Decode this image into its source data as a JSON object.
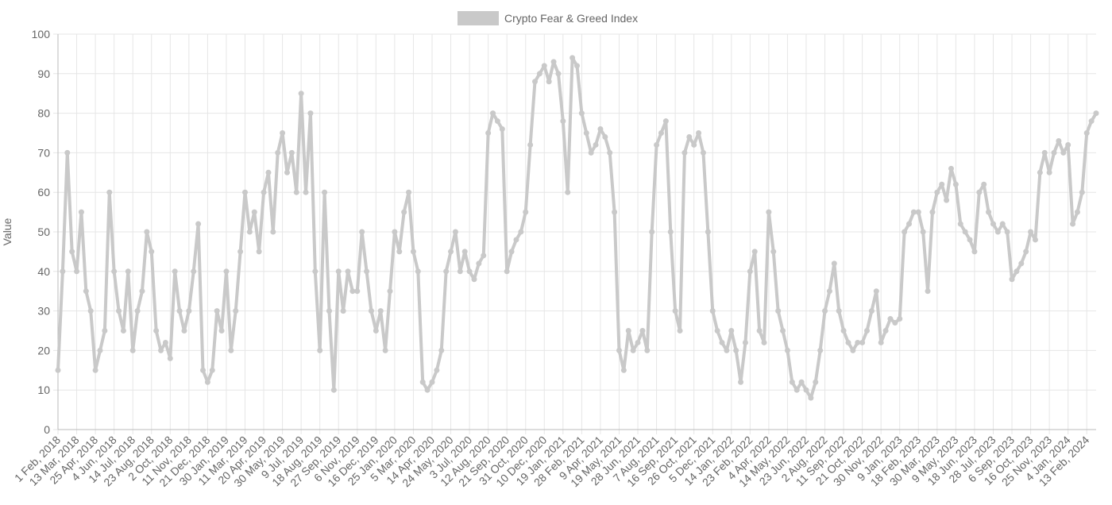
{
  "chart_data": {
    "type": "line",
    "categories": [
      "1 Feb, 2018",
      null,
      null,
      null,
      "13 Mar, 2018",
      null,
      null,
      null,
      "25 Apr, 2018",
      null,
      null,
      null,
      "4 Jun, 2018",
      null,
      null,
      null,
      "14 Jul, 2018",
      null,
      null,
      null,
      "23 Aug, 2018",
      null,
      null,
      null,
      "2 Oct, 2018",
      null,
      null,
      null,
      "11 Nov, 2018",
      null,
      null,
      null,
      "21 Dec, 2018",
      null,
      null,
      null,
      "30 Jan, 2019",
      null,
      null,
      null,
      "11 Mar, 2019",
      null,
      null,
      null,
      "20 Apr, 2019",
      null,
      null,
      null,
      "30 May, 2019",
      null,
      null,
      null,
      "9 Jul, 2019",
      null,
      null,
      null,
      "18 Aug, 2019",
      null,
      null,
      null,
      "27 Sep, 2019",
      null,
      null,
      null,
      "6 Nov, 2019",
      null,
      null,
      null,
      "16 Dec, 2019",
      null,
      null,
      null,
      "25 Jan, 2020",
      null,
      null,
      null,
      "5 Mar, 2020",
      null,
      null,
      null,
      "14 Apr, 2020",
      null,
      null,
      null,
      "24 May, 2020",
      null,
      null,
      null,
      "3 Jul, 2020",
      null,
      null,
      null,
      "12 Aug, 2020",
      null,
      null,
      null,
      "21 Sep, 2020",
      null,
      null,
      null,
      "31 Oct, 2020",
      null,
      null,
      null,
      "10 Dec, 2020",
      null,
      null,
      null,
      "19 Jan, 2021",
      null,
      null,
      null,
      "28 Feb, 2021",
      null,
      null,
      null,
      "9 Apr, 2021",
      null,
      null,
      null,
      "19 May, 2021",
      null,
      null,
      null,
      "28 Jun, 2021",
      null,
      null,
      null,
      "7 Aug, 2021",
      null,
      null,
      null,
      "16 Sep, 2021",
      null,
      null,
      null,
      "26 Oct, 2021",
      null,
      null,
      null,
      "5 Dec, 2021",
      null,
      null,
      null,
      "14 Jan, 2022",
      null,
      null,
      null,
      "23 Feb, 2022",
      null,
      null,
      null,
      "4 Apr, 2022",
      null,
      null,
      null,
      "14 May, 2022",
      null,
      null,
      null,
      "23 Jun, 2022",
      null,
      null,
      null,
      "2 Aug, 2022",
      null,
      null,
      null,
      "11 Sep, 2022",
      null,
      null,
      null,
      "21 Oct, 2022",
      null,
      null,
      null,
      "30 Nov, 2022",
      null,
      null,
      null,
      "9 Jan, 2023",
      null,
      null,
      null,
      "18 Feb, 2023",
      null,
      null,
      null,
      "30 Mar, 2023",
      null,
      null,
      null,
      "9 May, 2023",
      null,
      null,
      null,
      "18 Jun, 2023",
      null,
      null,
      null,
      "28 Jul, 2023",
      null,
      null,
      null,
      "6 Sep, 2023",
      null,
      null,
      null,
      "16 Oct, 2023",
      null,
      null,
      null,
      "25 Nov, 2023",
      null,
      null,
      null,
      "4 Jan, 2024",
      null,
      null,
      null,
      "13 Feb, 2024",
      null,
      null
    ],
    "series": [
      {
        "name": "Crypto Fear & Greed Index",
        "color": "#c9c9c9",
        "values": [
          15,
          40,
          70,
          45,
          40,
          55,
          35,
          30,
          15,
          20,
          25,
          60,
          40,
          30,
          25,
          40,
          20,
          30,
          35,
          50,
          45,
          25,
          20,
          22,
          18,
          40,
          30,
          25,
          30,
          40,
          52,
          15,
          12,
          15,
          30,
          25,
          40,
          20,
          30,
          45,
          60,
          50,
          55,
          45,
          60,
          65,
          50,
          70,
          75,
          65,
          70,
          60,
          85,
          60,
          80,
          40,
          20,
          60,
          30,
          10,
          40,
          30,
          40,
          35,
          35,
          50,
          40,
          30,
          25,
          30,
          20,
          35,
          50,
          45,
          55,
          60,
          45,
          40,
          12,
          10,
          12,
          15,
          20,
          40,
          45,
          50,
          40,
          45,
          40,
          38,
          42,
          44,
          75,
          80,
          78,
          76,
          40,
          45,
          48,
          50,
          55,
          72,
          88,
          90,
          92,
          88,
          93,
          90,
          78,
          60,
          94,
          92,
          80,
          75,
          70,
          72,
          76,
          74,
          70,
          55,
          20,
          15,
          25,
          20,
          22,
          25,
          20,
          50,
          72,
          75,
          78,
          50,
          30,
          25,
          70,
          74,
          72,
          75,
          70,
          50,
          30,
          25,
          22,
          20,
          25,
          20,
          12,
          22,
          40,
          45,
          25,
          22,
          55,
          45,
          30,
          25,
          20,
          12,
          10,
          12,
          10,
          8,
          12,
          20,
          30,
          35,
          42,
          30,
          25,
          22,
          20,
          22,
          22,
          25,
          30,
          35,
          22,
          25,
          28,
          27,
          28,
          50,
          52,
          55,
          55,
          50,
          35,
          55,
          60,
          62,
          58,
          66,
          62,
          52,
          50,
          48,
          45,
          60,
          62,
          55,
          52,
          50,
          52,
          50,
          38,
          40,
          42,
          45,
          50,
          48,
          65,
          70,
          65,
          70,
          73,
          70,
          72,
          52,
          55,
          60,
          75,
          78,
          80
        ]
      }
    ],
    "y_label": "Value",
    "ylim": [
      0,
      100
    ],
    "yticks": [
      0,
      10,
      20,
      30,
      40,
      50,
      60,
      70,
      80,
      90,
      100
    ],
    "grid": true,
    "legend": "top"
  }
}
